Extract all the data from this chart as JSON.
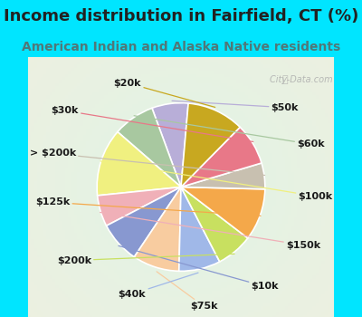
{
  "title": "Income distribution in Fairfield, CT (%)",
  "subtitle": "American Indian and Alaska Native residents",
  "top_bg": "#00e5ff",
  "chart_bg_color": "#d8f0e8",
  "labels": [
    "$50k",
    "$60k",
    "$100k",
    "$150k",
    "$10k",
    "$75k",
    "$40k",
    "$200k",
    "$125k",
    "> $200k",
    "$30k",
    "$20k"
  ],
  "sizes": [
    7,
    8,
    13,
    6,
    8,
    9,
    8,
    7,
    10,
    5,
    8,
    11
  ],
  "colors": [
    "#b8aed8",
    "#a8c8a0",
    "#f0f080",
    "#f0b0b8",
    "#8898d0",
    "#f8cca0",
    "#a0b8e8",
    "#c8e060",
    "#f4a84a",
    "#c8c0b0",
    "#e87888",
    "#c8a820"
  ],
  "title_fontsize": 13,
  "subtitle_fontsize": 10,
  "subtitle_color": "#507878",
  "startangle": 85,
  "label_fontsize": 8
}
